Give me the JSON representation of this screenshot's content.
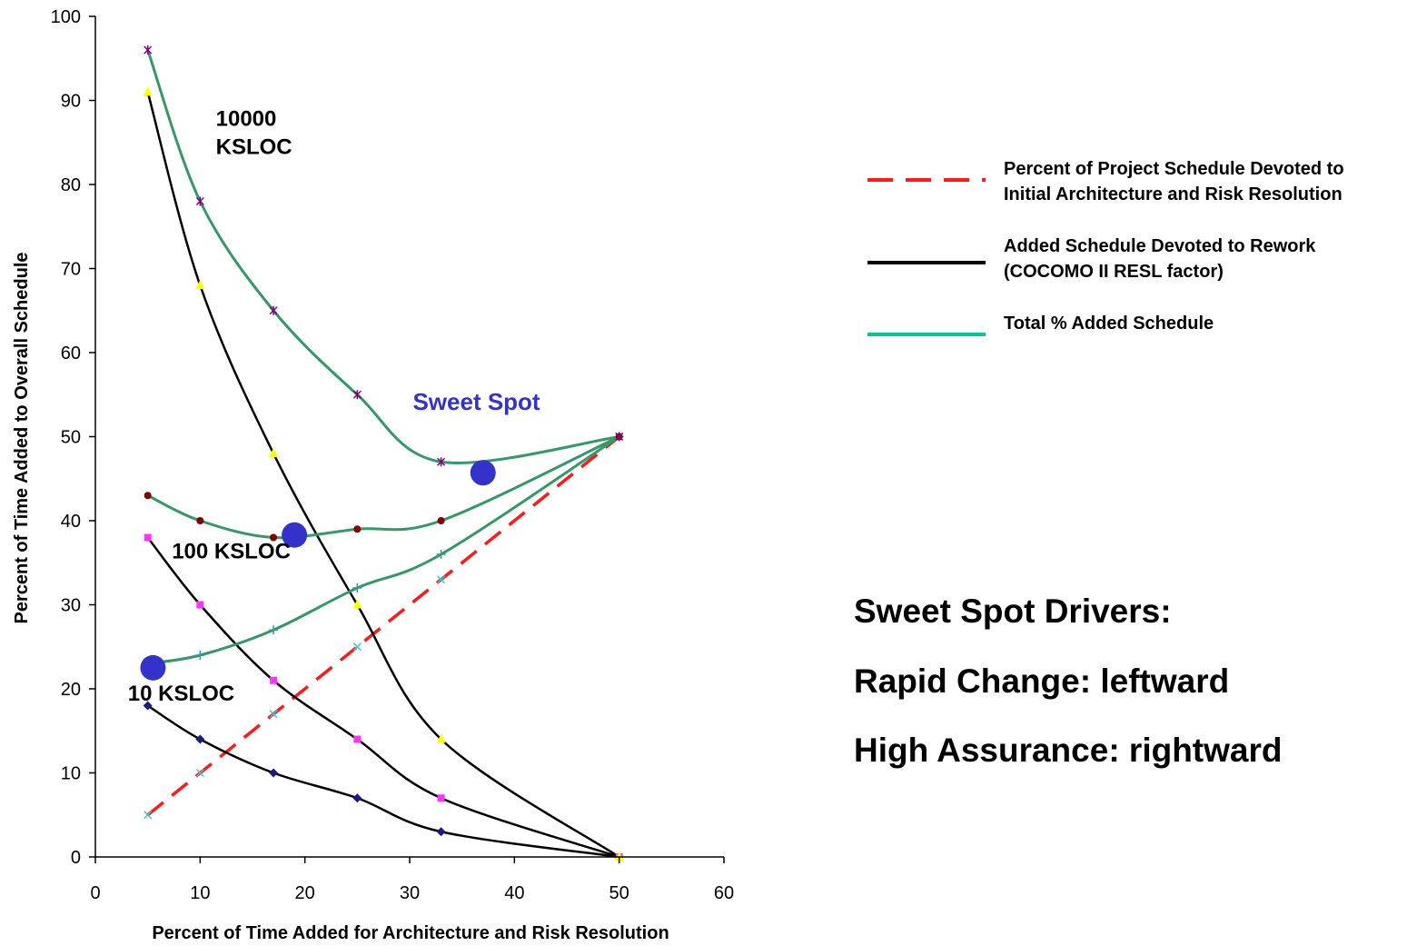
{
  "chart_data": {
    "type": "line",
    "xlabel": "Percent of Time Added for Architecture and Risk Resolution",
    "ylabel": "Percent of Time Added to Overall Schedule",
    "xlim": [
      0,
      60
    ],
    "ylim": [
      0,
      100
    ],
    "xticks": [
      "0",
      "10",
      "20",
      "30",
      "40",
      "50",
      "60"
    ],
    "yticks": [
      "0",
      "10",
      "20",
      "30",
      "40",
      "50",
      "60",
      "70",
      "80",
      "90",
      "100"
    ],
    "grid": false,
    "legend_position": "right",
    "legend": [
      {
        "label": "Percent of Project Schedule Devoted to\nInitial Architecture and Risk Resolution",
        "color": "#ff1a1a",
        "style": "dashed"
      },
      {
        "label": "Added Schedule Devoted to Rework\n(COCOMO II RESL factor)",
        "color": "#000000",
        "style": "solid"
      },
      {
        "label": "Total % Added Schedule",
        "color": "#00c896",
        "style": "solid"
      }
    ],
    "series": [
      {
        "group": "architecture",
        "kind": "dashed",
        "color": "#ff1a1a",
        "marker": "x",
        "marker_color": "#33cccc",
        "x": [
          5,
          10,
          17,
          25,
          33,
          50
        ],
        "y": [
          5,
          10,
          17,
          25,
          33,
          50
        ]
      },
      {
        "group": "10 KSLOC",
        "kind": "rework",
        "color": "#000000",
        "marker": "diamond",
        "marker_color": "#1a1a80",
        "x": [
          5,
          10,
          17,
          25,
          33,
          50
        ],
        "y": [
          18,
          14,
          10,
          7,
          3,
          0
        ]
      },
      {
        "group": "100 KSLOC",
        "kind": "rework",
        "color": "#000000",
        "marker": "square",
        "marker_color": "#ff33ff",
        "x": [
          5,
          10,
          17,
          25,
          33,
          50
        ],
        "y": [
          38,
          30,
          21,
          14,
          7,
          0
        ]
      },
      {
        "group": "10000 KSLOC",
        "kind": "rework",
        "color": "#000000",
        "marker": "triangle",
        "marker_color": "#ffff00",
        "x": [
          5,
          10,
          17,
          25,
          33,
          50
        ],
        "y": [
          91,
          68,
          48,
          30,
          14,
          0
        ]
      },
      {
        "group": "10 KSLOC",
        "kind": "total",
        "color": "#339966",
        "marker": "plus",
        "marker_color": "#339999",
        "x": [
          5,
          10,
          17,
          25,
          33,
          50
        ],
        "y": [
          23,
          24,
          27,
          32,
          36,
          50
        ]
      },
      {
        "group": "100 KSLOC",
        "kind": "total",
        "color": "#339966",
        "marker": "circle",
        "marker_color": "#800000",
        "x": [
          5,
          10,
          17,
          25,
          33,
          50
        ],
        "y": [
          43,
          40,
          38,
          39,
          40,
          50
        ]
      },
      {
        "group": "10000 KSLOC",
        "kind": "total",
        "color": "#339966",
        "marker": "star",
        "marker_color": "#800080",
        "x": [
          5,
          10,
          17,
          25,
          33,
          50
        ],
        "y": [
          96,
          78,
          65,
          55,
          47,
          50
        ]
      }
    ],
    "sweet_spots": [
      {
        "x": 5.5,
        "y": 22.5
      },
      {
        "x": 19,
        "y": 38.3
      },
      {
        "x": 37,
        "y": 45.7
      }
    ],
    "sweet_spot_color": "#3333cc",
    "annotations": [
      {
        "text": "10000",
        "x": 11.5,
        "y": 87
      },
      {
        "text": "KSLOC",
        "x": 11.5,
        "y": 83.6
      },
      {
        "text": "100 KSLOC",
        "x": 7.3,
        "y": 35.5
      },
      {
        "text": "10 KSLOC",
        "x": 3.1,
        "y": 18.6
      },
      {
        "text": "Sweet Spot",
        "x": 30.3,
        "y": 53.2,
        "color": "#3333cc"
      }
    ]
  },
  "drivers": {
    "title": "Sweet Spot Drivers:",
    "line1": "Rapid Change: leftward",
    "line2": "High Assurance: rightward"
  }
}
